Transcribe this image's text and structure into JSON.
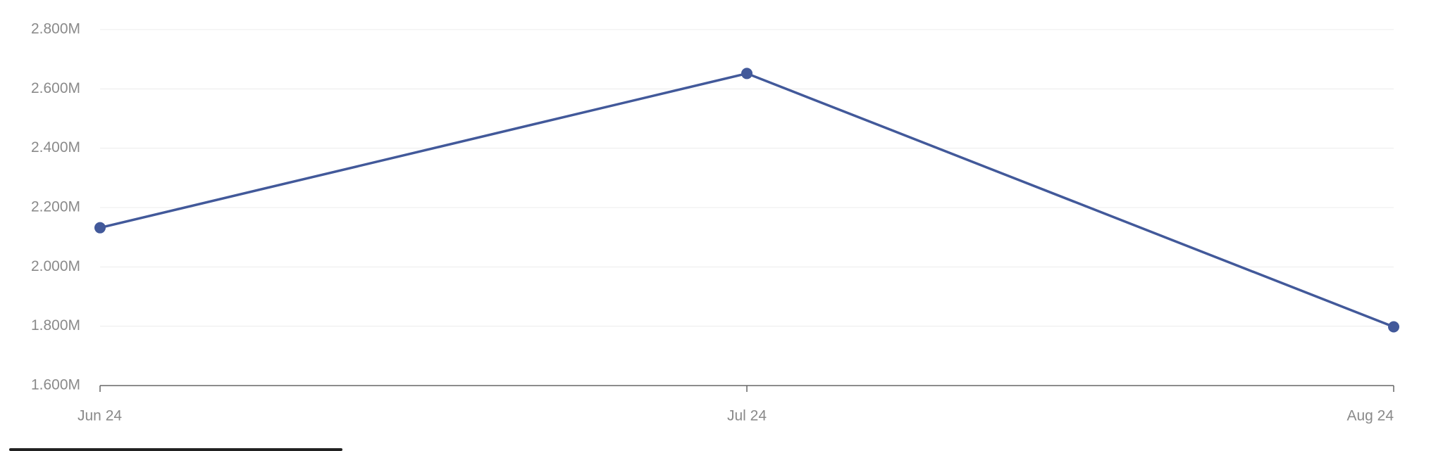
{
  "chart_data": {
    "type": "line",
    "categories": [
      "Jun 24",
      "Jul 24",
      "Aug 24"
    ],
    "series": [
      {
        "color": "#42599a",
        "values": [
          2132000,
          2652000,
          1798000
        ]
      }
    ],
    "ylim": [
      1600000,
      2800000
    ],
    "yticks": [
      {
        "value": 1600000,
        "label": "1.600M"
      },
      {
        "value": 1800000,
        "label": "1.800M"
      },
      {
        "value": 2000000,
        "label": "2.000M"
      },
      {
        "value": 2200000,
        "label": "2.200M"
      },
      {
        "value": 2400000,
        "label": "2.400M"
      },
      {
        "value": 2600000,
        "label": "2.600M"
      },
      {
        "value": 2800000,
        "label": "2.800M"
      }
    ],
    "grid": true
  }
}
